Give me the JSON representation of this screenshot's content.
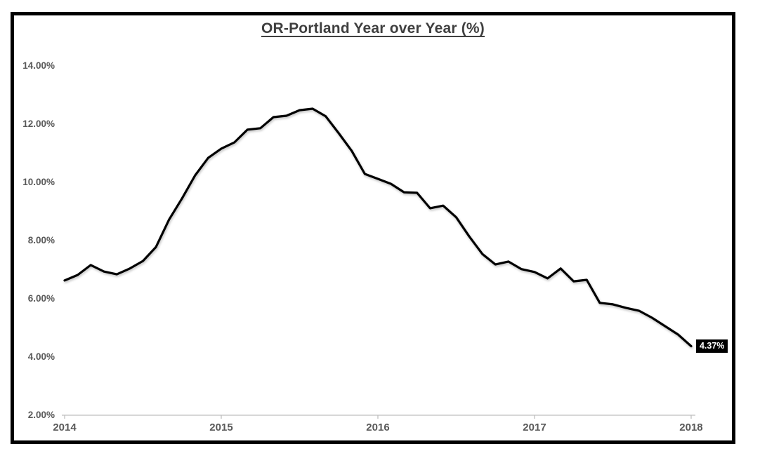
{
  "chart_data": {
    "type": "line",
    "title": "OR-Portland Year over Year (%)",
    "xlabel": "",
    "ylabel": "",
    "ylim": [
      2,
      14
    ],
    "y_step": 2,
    "grid": false,
    "legend": "none",
    "frequency": "monthly",
    "x_start": "2014-01",
    "x_end": "2018-01",
    "series": [
      {
        "name": "OR-Portland year-over-year change (%)",
        "values": [
          6.63,
          6.82,
          7.16,
          6.94,
          6.84,
          7.04,
          7.3,
          7.78,
          8.72,
          9.45,
          10.24,
          10.84,
          11.16,
          11.37,
          11.81,
          11.86,
          12.24,
          12.29,
          12.48,
          12.53,
          12.27,
          11.69,
          11.08,
          10.29,
          10.12,
          9.95,
          9.66,
          9.64,
          9.11,
          9.2,
          8.8,
          8.14,
          7.54,
          7.18,
          7.28,
          7.02,
          6.92,
          6.7,
          7.04,
          6.6,
          6.65,
          5.86,
          5.81,
          5.69,
          5.59,
          5.35,
          5.06,
          4.77,
          4.37
        ]
      }
    ],
    "y_ticks": [
      {
        "value": 2,
        "label": "2.00%"
      },
      {
        "value": 4,
        "label": "4.00%"
      },
      {
        "value": 6,
        "label": "6.00%"
      },
      {
        "value": 8,
        "label": "8.00%"
      },
      {
        "value": 10,
        "label": "10.00%"
      },
      {
        "value": 12,
        "label": "12.00%"
      },
      {
        "value": 14,
        "label": "14.00%"
      }
    ],
    "x_ticks": [
      {
        "month_index": 0,
        "label": "2014"
      },
      {
        "month_index": 12,
        "label": "2015"
      },
      {
        "month_index": 24,
        "label": "2016"
      },
      {
        "month_index": 36,
        "label": "2017"
      },
      {
        "month_index": 48,
        "label": "2018"
      }
    ],
    "end_label": "4.37%",
    "colors": {
      "line": "#000000",
      "axis": "#bfbfbf",
      "tick_label": "#595959",
      "title": "#3f3f3f",
      "end_label_bg": "#000000",
      "end_label_text": "#ffffff",
      "frame": "#000000",
      "background": "#ffffff"
    }
  }
}
